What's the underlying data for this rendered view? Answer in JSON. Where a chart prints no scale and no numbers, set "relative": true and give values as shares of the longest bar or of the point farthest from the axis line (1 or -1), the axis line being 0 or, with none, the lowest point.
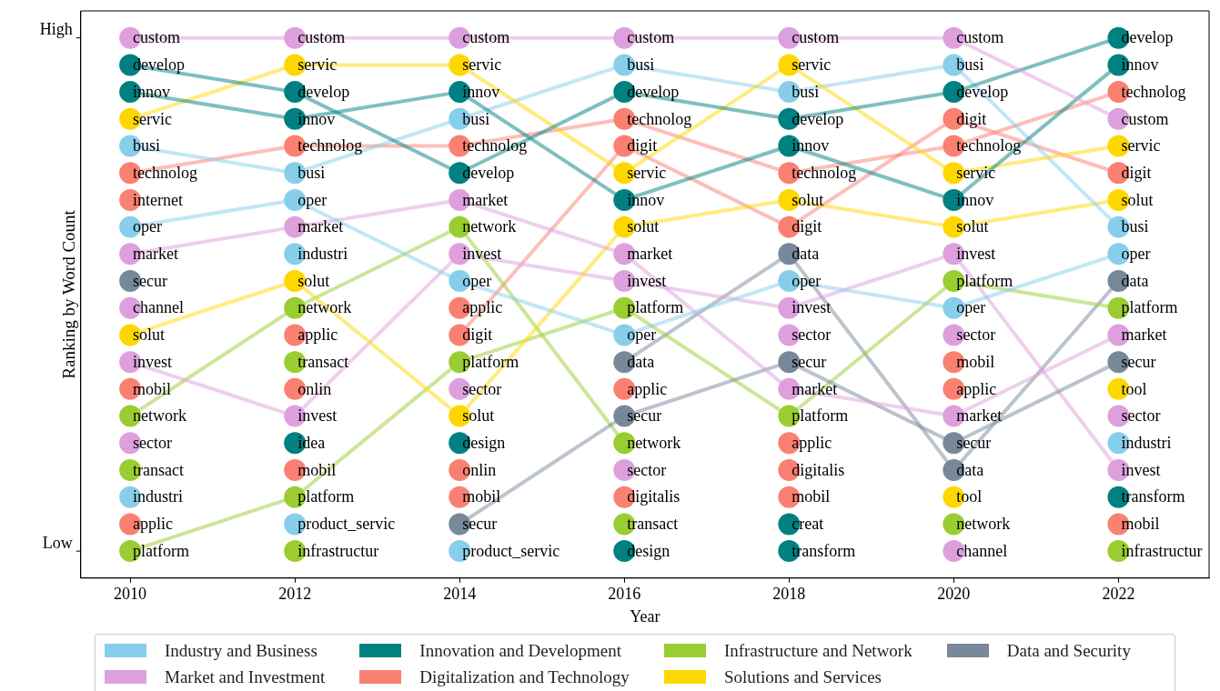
{
  "chart_data": {
    "type": "line",
    "xlabel": "Year",
    "ylabel": "Ranking by Word Count",
    "relative": true,
    "x": [
      2010,
      2012,
      2014,
      2016,
      2018,
      2020,
      2022
    ],
    "xlim": [
      2009.4,
      2023.1
    ],
    "xticks": [
      2010,
      2012,
      2014,
      2016,
      2018,
      2020,
      2022
    ],
    "annotations": [
      "High",
      "Low"
    ],
    "marker": "circle",
    "legend": "bottom",
    "series": [
      {
        "name": "custom",
        "type": "line",
        "color": "#dda0dd",
        "values": [
          1,
          1,
          1,
          1,
          1,
          1,
          0.85
        ]
      },
      {
        "name": "develop",
        "type": "line",
        "color": "#008080",
        "values": [
          0.95,
          0.9,
          0.75,
          0.9,
          0.85,
          0.9,
          1
        ]
      },
      {
        "name": "innov",
        "type": "line",
        "color": "#008080",
        "values": [
          0.9,
          0.85,
          0.9,
          0.7,
          0.8,
          0.7,
          0.95
        ]
      },
      {
        "name": "servic",
        "type": "line",
        "color": "#ffd700",
        "values": [
          0.85,
          0.95,
          0.95,
          0.75,
          0.95,
          0.75,
          0.8
        ]
      },
      {
        "name": "busi",
        "type": "line",
        "color": "#87ceeb",
        "values": [
          0.8,
          0.75,
          0.85,
          0.95,
          0.9,
          0.95,
          0.65
        ]
      },
      {
        "name": "technolog",
        "type": "line",
        "color": "#fa8072",
        "values": [
          0.75,
          0.8,
          0.8,
          0.85,
          0.75,
          0.8,
          0.9
        ]
      },
      {
        "name": "internet",
        "type": "scatter",
        "color": "#fa8072",
        "values": [
          0.7,
          null,
          null,
          null,
          null,
          null,
          null
        ]
      },
      {
        "name": "oper",
        "type": "line",
        "color": "#87ceeb",
        "values": [
          0.65,
          0.7,
          0.55,
          0.45,
          0.55,
          0.5,
          0.6
        ]
      },
      {
        "name": "market",
        "type": "line",
        "color": "#dda0dd",
        "values": [
          0.6,
          0.65,
          0.7,
          0.6,
          0.35,
          0.3,
          0.45
        ]
      },
      {
        "name": "secur",
        "type": "line",
        "color": "#778899",
        "values": [
          0.55,
          null,
          0.1,
          0.3,
          0.4,
          0.25,
          0.4
        ]
      },
      {
        "name": "channel",
        "type": "scatter",
        "color": "#dda0dd",
        "values": [
          0.5,
          null,
          null,
          null,
          null,
          0.05,
          null
        ]
      },
      {
        "name": "solut",
        "type": "line",
        "color": "#ffd700",
        "values": [
          0.45,
          0.55,
          0.3,
          0.65,
          0.7,
          0.65,
          0.7
        ]
      },
      {
        "name": "invest",
        "type": "line",
        "color": "#dda0dd",
        "values": [
          0.4,
          0.3,
          0.6,
          0.55,
          0.5,
          0.6,
          0.2
        ]
      },
      {
        "name": "mobil",
        "type": "scatter",
        "color": "#fa8072",
        "values": [
          0.35,
          0.2,
          0.15,
          null,
          0.15,
          0.4,
          0.1
        ]
      },
      {
        "name": "network",
        "type": "line",
        "color": "#9acd32",
        "values": [
          0.3,
          0.5,
          0.65,
          0.25,
          null,
          0.1,
          null
        ]
      },
      {
        "name": "sector",
        "type": "scatter",
        "color": "#dda0dd",
        "values": [
          0.25,
          null,
          0.35,
          0.2,
          0.45,
          0.45,
          0.3
        ]
      },
      {
        "name": "transact",
        "type": "scatter",
        "color": "#9acd32",
        "values": [
          0.2,
          0.4,
          null,
          0.1,
          null,
          null,
          null
        ]
      },
      {
        "name": "industri",
        "type": "scatter",
        "color": "#87ceeb",
        "values": [
          0.15,
          0.6,
          null,
          null,
          null,
          null,
          0.25
        ]
      },
      {
        "name": "applic",
        "type": "scatter",
        "color": "#fa8072",
        "values": [
          0.1,
          0.45,
          0.5,
          0.35,
          0.25,
          0.35,
          null
        ]
      },
      {
        "name": "platform",
        "type": "line",
        "color": "#9acd32",
        "values": [
          0.05,
          0.15,
          0.4,
          0.5,
          0.3,
          0.55,
          0.5
        ]
      },
      {
        "name": "onlin",
        "type": "scatter",
        "color": "#fa8072",
        "values": [
          null,
          0.35,
          0.2,
          null,
          null,
          null,
          null
        ]
      },
      {
        "name": "idea",
        "type": "scatter",
        "color": "#008080",
        "values": [
          null,
          0.25,
          null,
          null,
          null,
          null,
          null
        ]
      },
      {
        "name": "product_servic",
        "type": "scatter",
        "color": "#87ceeb",
        "values": [
          null,
          0.1,
          0.05,
          null,
          null,
          null,
          null
        ]
      },
      {
        "name": "infrastructur",
        "type": "scatter",
        "color": "#9acd32",
        "values": [
          null,
          0.05,
          null,
          null,
          null,
          null,
          0.05
        ]
      },
      {
        "name": "digit",
        "type": "line",
        "color": "#fa8072",
        "values": [
          null,
          null,
          0.45,
          0.8,
          0.65,
          0.85,
          0.75
        ]
      },
      {
        "name": "design",
        "type": "scatter",
        "color": "#008080",
        "values": [
          null,
          null,
          0.25,
          0.05,
          null,
          null,
          null
        ]
      },
      {
        "name": "data",
        "type": "line",
        "color": "#778899",
        "values": [
          null,
          null,
          null,
          0.4,
          0.6,
          0.2,
          0.55
        ]
      },
      {
        "name": "digitalis",
        "type": "scatter",
        "color": "#fa8072",
        "values": [
          null,
          null,
          null,
          0.15,
          0.2,
          null,
          null
        ]
      },
      {
        "name": "creat",
        "type": "scatter",
        "color": "#008080",
        "values": [
          null,
          null,
          null,
          null,
          0.1,
          null,
          null
        ]
      },
      {
        "name": "transform",
        "type": "scatter",
        "color": "#008080",
        "values": [
          null,
          null,
          null,
          null,
          0.05,
          null,
          0.15
        ]
      },
      {
        "name": "tool",
        "type": "scatter",
        "color": "#ffd700",
        "values": [
          null,
          null,
          null,
          null,
          null,
          0.15,
          0.35
        ]
      },
      {
        "name": "Industry and Business",
        "color": "#87ceeb",
        "values": [
          null,
          null,
          null,
          null,
          null,
          null,
          null
        ]
      },
      {
        "name": "Market and Investment",
        "color": "#dda0dd",
        "values": [
          null,
          null,
          null,
          null,
          null,
          null,
          null
        ]
      },
      {
        "name": "Innovation and Development",
        "color": "#008080",
        "values": [
          null,
          null,
          null,
          null,
          null,
          null,
          null
        ]
      },
      {
        "name": "Digitalization and Technology",
        "color": "#fa8072",
        "values": [
          null,
          null,
          null,
          null,
          null,
          null,
          null
        ]
      },
      {
        "name": "Infrastructure and Network",
        "color": "#9acd32",
        "values": [
          null,
          null,
          null,
          null,
          null,
          null,
          null
        ]
      },
      {
        "name": "Solutions and Services",
        "color": "#ffd700",
        "values": [
          null,
          null,
          null,
          null,
          null,
          null,
          null
        ]
      },
      {
        "name": "Data and Security",
        "color": "#778899",
        "values": [
          null,
          null,
          null,
          null,
          null,
          null,
          null
        ]
      }
    ]
  }
}
